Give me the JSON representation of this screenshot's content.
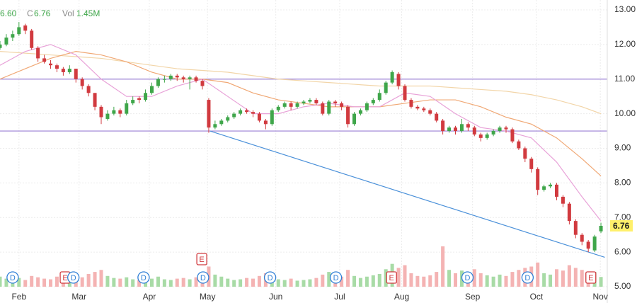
{
  "chart_data": {
    "type": "candlestick",
    "header": {
      "open": "6.60",
      "close_label": "C",
      "close": "6.76",
      "volume_label": "Vol",
      "volume": "1.45M"
    },
    "up_color": "#3fa64a",
    "down_color": "#d13a3f",
    "up_volume_color": "#a8dba6",
    "down_volume_color": "#f4b3b3",
    "x": [
      0,
      1,
      2,
      3,
      4,
      5,
      6,
      7,
      8,
      9,
      10,
      11,
      12,
      13,
      14,
      15,
      16,
      17,
      18,
      19,
      20,
      21,
      22,
      23,
      24,
      25,
      26,
      27,
      28,
      29,
      30,
      31,
      32,
      33,
      34,
      35,
      36,
      37,
      38,
      39,
      40,
      41,
      42,
      43,
      44,
      45,
      46,
      47,
      48,
      49,
      50,
      51,
      52,
      53,
      54,
      55,
      56,
      57,
      58,
      59,
      60,
      61,
      62,
      63,
      64,
      65,
      66,
      67,
      68,
      69,
      70,
      71,
      72,
      73,
      74,
      75,
      76,
      77,
      78,
      79,
      80,
      81,
      82,
      83,
      84,
      85,
      86,
      87,
      88,
      89,
      90,
      91,
      92,
      93,
      94,
      95
    ],
    "candles": [
      [
        11.9,
        12.1,
        11.85,
        12.0
      ],
      [
        12.0,
        12.3,
        11.95,
        12.2
      ],
      [
        12.2,
        12.4,
        12.1,
        12.3
      ],
      [
        12.3,
        12.65,
        12.25,
        12.5
      ],
      [
        12.55,
        12.6,
        12.3,
        12.4
      ],
      [
        12.4,
        12.45,
        11.85,
        11.9
      ],
      [
        11.9,
        11.95,
        11.5,
        11.6
      ],
      [
        11.6,
        11.7,
        11.45,
        11.5
      ],
      [
        11.45,
        11.55,
        11.3,
        11.4
      ],
      [
        11.4,
        11.45,
        11.2,
        11.3
      ],
      [
        11.3,
        11.35,
        11.1,
        11.2
      ],
      [
        11.2,
        11.4,
        11.15,
        11.3
      ],
      [
        11.3,
        11.3,
        10.9,
        11.0
      ],
      [
        11.0,
        11.05,
        10.7,
        10.8
      ],
      [
        10.8,
        10.85,
        10.5,
        10.6
      ],
      [
        10.6,
        10.6,
        10.1,
        10.2
      ],
      [
        10.2,
        10.25,
        9.7,
        9.9
      ],
      [
        9.85,
        10.1,
        9.8,
        10.0
      ],
      [
        10.0,
        10.2,
        9.95,
        10.1
      ],
      [
        10.1,
        10.15,
        9.9,
        10.0
      ],
      [
        10.0,
        10.4,
        9.95,
        10.3
      ],
      [
        10.3,
        10.5,
        10.25,
        10.4
      ],
      [
        10.45,
        10.5,
        10.3,
        10.4
      ],
      [
        10.4,
        10.7,
        10.35,
        10.6
      ],
      [
        10.6,
        10.9,
        10.55,
        10.8
      ],
      [
        10.8,
        11.05,
        10.75,
        11.0
      ],
      [
        11.0,
        11.1,
        10.9,
        11.0
      ],
      [
        11.0,
        11.15,
        10.95,
        11.1
      ],
      [
        11.1,
        11.15,
        10.95,
        11.05
      ],
      [
        11.05,
        11.1,
        10.9,
        11.0
      ],
      [
        11.0,
        11.1,
        10.7,
        11.05
      ],
      [
        11.05,
        11.1,
        10.9,
        10.95
      ],
      [
        10.95,
        11.0,
        10.7,
        10.8
      ],
      [
        10.4,
        10.45,
        9.45,
        9.6
      ],
      [
        9.6,
        9.8,
        9.55,
        9.7
      ],
      [
        9.7,
        9.85,
        9.65,
        9.8
      ],
      [
        9.8,
        9.95,
        9.75,
        9.9
      ],
      [
        9.9,
        10.05,
        9.85,
        10.0
      ],
      [
        10.0,
        10.15,
        9.95,
        10.1
      ],
      [
        10.1,
        10.15,
        10.0,
        10.05
      ],
      [
        10.05,
        10.1,
        9.9,
        10.0
      ],
      [
        10.0,
        10.05,
        9.75,
        9.8
      ],
      [
        9.8,
        9.85,
        9.55,
        9.7
      ],
      [
        9.7,
        10.15,
        9.65,
        10.1
      ],
      [
        10.1,
        10.25,
        10.05,
        10.2
      ],
      [
        10.2,
        10.35,
        10.15,
        10.3
      ],
      [
        10.3,
        10.35,
        10.1,
        10.2
      ],
      [
        10.2,
        10.35,
        10.15,
        10.3
      ],
      [
        10.3,
        10.4,
        10.25,
        10.35
      ],
      [
        10.35,
        10.45,
        10.3,
        10.4
      ],
      [
        10.4,
        10.45,
        10.25,
        10.3
      ],
      [
        10.3,
        10.35,
        9.95,
        10.0
      ],
      [
        10.0,
        10.4,
        9.95,
        10.35
      ],
      [
        10.35,
        10.4,
        10.2,
        10.3
      ],
      [
        10.3,
        10.35,
        10.1,
        10.2
      ],
      [
        10.2,
        10.25,
        9.6,
        9.7
      ],
      [
        9.7,
        10.05,
        9.65,
        10.0
      ],
      [
        10.0,
        10.15,
        9.95,
        10.1
      ],
      [
        10.1,
        10.35,
        10.05,
        10.3
      ],
      [
        10.3,
        10.45,
        10.25,
        10.4
      ],
      [
        10.4,
        10.7,
        10.35,
        10.6
      ],
      [
        10.6,
        10.95,
        10.55,
        10.9
      ],
      [
        10.9,
        11.25,
        10.85,
        11.2
      ],
      [
        11.15,
        11.2,
        10.7,
        10.8
      ],
      [
        10.8,
        10.85,
        10.35,
        10.4
      ],
      [
        10.4,
        10.45,
        10.15,
        10.2
      ],
      [
        10.2,
        10.25,
        10.1,
        10.15
      ],
      [
        10.15,
        10.2,
        10.05,
        10.1
      ],
      [
        10.1,
        10.15,
        9.95,
        10.0
      ],
      [
        10.0,
        10.05,
        9.75,
        9.8
      ],
      [
        9.8,
        9.85,
        9.4,
        9.5
      ],
      [
        9.5,
        9.65,
        9.45,
        9.6
      ],
      [
        9.6,
        9.65,
        9.4,
        9.5
      ],
      [
        9.5,
        9.85,
        9.45,
        9.7
      ],
      [
        9.7,
        9.75,
        9.5,
        9.6
      ],
      [
        9.6,
        9.65,
        9.35,
        9.4
      ],
      [
        9.4,
        9.45,
        9.2,
        9.3
      ],
      [
        9.3,
        9.45,
        9.25,
        9.4
      ],
      [
        9.4,
        9.55,
        9.35,
        9.5
      ],
      [
        9.5,
        9.65,
        9.45,
        9.6
      ],
      [
        9.6,
        9.65,
        9.45,
        9.55
      ],
      [
        9.55,
        9.6,
        9.15,
        9.2
      ],
      [
        9.2,
        9.25,
        8.95,
        9.0
      ],
      [
        9.0,
        9.05,
        8.6,
        8.7
      ],
      [
        8.7,
        8.75,
        8.3,
        8.4
      ],
      [
        8.4,
        8.45,
        7.65,
        7.8
      ],
      [
        7.8,
        7.95,
        7.75,
        7.9
      ],
      [
        7.9,
        8.0,
        7.85,
        7.95
      ],
      [
        7.95,
        8.0,
        7.5,
        7.6
      ],
      [
        7.6,
        7.65,
        7.3,
        7.4
      ],
      [
        7.4,
        7.45,
        6.8,
        6.9
      ],
      [
        6.9,
        6.95,
        6.4,
        6.5
      ],
      [
        6.5,
        6.55,
        6.2,
        6.3
      ],
      [
        6.3,
        6.35,
        6.0,
        6.1
      ],
      [
        6.05,
        6.5,
        6.0,
        6.45
      ],
      [
        6.6,
        6.85,
        6.55,
        6.76
      ]
    ],
    "volume": [
      1.5,
      1.2,
      1.8,
      1.3,
      1.0,
      1.6,
      1.4,
      1.2,
      1.1,
      1.5,
      2.0,
      1.3,
      1.7,
      1.4,
      1.9,
      2.2,
      2.5,
      1.6,
      1.3,
      1.2,
      1.4,
      1.1,
      1.0,
      1.3,
      1.2,
      1.5,
      1.1,
      1.0,
      1.2,
      1.3,
      1.1,
      1.4,
      1.6,
      3.0,
      1.8,
      1.5,
      1.2,
      1.0,
      1.1,
      1.3,
      1.2,
      1.6,
      2.0,
      1.5,
      1.1,
      1.0,
      1.2,
      0.9,
      1.0,
      1.1,
      1.3,
      1.8,
      2.2,
      1.4,
      1.5,
      2.5,
      1.6,
      1.3,
      1.5,
      1.7,
      1.9,
      2.6,
      3.4,
      2.8,
      3.2,
      2.0,
      1.6,
      1.5,
      1.7,
      2.2,
      6.0,
      2.5,
      2.0,
      2.4,
      1.8,
      2.6,
      2.0,
      1.7,
      1.5,
      1.8,
      1.6,
      2.2,
      2.5,
      2.8,
      3.0,
      3.6,
      2.0,
      1.8,
      2.6,
      2.4,
      3.2,
      2.8,
      2.5,
      2.0,
      2.2,
      1.45
    ],
    "moving_averages": [
      {
        "color": "#f2d5a8",
        "x": [
          0,
          4,
          8,
          12,
          16,
          20,
          24,
          28,
          32,
          36,
          40,
          44,
          48,
          52,
          56,
          60,
          64,
          68,
          72,
          76,
          80,
          84,
          88,
          92,
          95
        ],
        "values": [
          11.8,
          11.75,
          11.7,
          11.65,
          11.6,
          11.5,
          11.4,
          11.3,
          11.25,
          11.2,
          11.1,
          11.0,
          10.95,
          10.9,
          10.85,
          10.8,
          10.8,
          10.8,
          10.75,
          10.7,
          10.65,
          10.55,
          10.4,
          10.2,
          10.0
        ]
      },
      {
        "color": "#f0a875",
        "x": [
          0,
          4,
          8,
          12,
          16,
          20,
          24,
          28,
          32,
          36,
          40,
          44,
          48,
          52,
          56,
          60,
          64,
          68,
          72,
          76,
          80,
          84,
          88,
          92,
          95
        ],
        "values": [
          11.0,
          11.3,
          11.6,
          11.8,
          11.7,
          11.5,
          11.2,
          11.0,
          11.0,
          10.9,
          10.6,
          10.4,
          10.3,
          10.2,
          10.2,
          10.2,
          10.3,
          10.4,
          10.4,
          10.2,
          9.9,
          9.7,
          9.3,
          8.7,
          8.2
        ]
      },
      {
        "color": "#e8a2d8",
        "x": [
          0,
          4,
          8,
          12,
          16,
          20,
          24,
          28,
          32,
          36,
          40,
          44,
          48,
          52,
          56,
          60,
          64,
          68,
          72,
          76,
          80,
          84,
          88,
          92,
          95
        ],
        "values": [
          11.4,
          11.8,
          12.0,
          11.7,
          11.0,
          10.5,
          10.5,
          10.8,
          11.0,
          10.5,
          10.0,
          10.0,
          10.2,
          10.3,
          10.2,
          10.2,
          10.6,
          10.5,
          10.0,
          9.6,
          9.5,
          9.3,
          8.6,
          7.6,
          6.9
        ]
      }
    ],
    "horizontal_lines": [
      11.0,
      9.5
    ],
    "horizontal_line_color": "#9a7fd4",
    "trendline": {
      "color": "#4a90d9",
      "x": [
        33.2,
        95.6
      ],
      "values": [
        9.5,
        5.85
      ]
    },
    "markers": [
      {
        "label": "D",
        "x": 2.0
      },
      {
        "label": "E",
        "x": 10.3
      },
      {
        "label": "D",
        "x": 11.6
      },
      {
        "label": "D",
        "x": 22.7
      },
      {
        "label": "D",
        "x": 32.1
      },
      {
        "label": "E",
        "x": 31.9
      },
      {
        "label": "D",
        "x": 42.7
      },
      {
        "label": "D",
        "x": 53.1
      },
      {
        "label": "E",
        "x": 61.9
      },
      {
        "label": "D",
        "x": 73.9
      },
      {
        "label": "D",
        "x": 83.4
      },
      {
        "label": "E",
        "x": 93.4
      }
    ],
    "last_price": 6.76,
    "xlim": [
      0,
      96
    ],
    "xticks": [
      {
        "value": 3,
        "label": "Feb"
      },
      {
        "value": 12.5,
        "label": "Mar"
      },
      {
        "value": 23.6,
        "label": "Apr"
      },
      {
        "value": 32.8,
        "label": "May"
      },
      {
        "value": 43.6,
        "label": "Jun"
      },
      {
        "value": 53.7,
        "label": "Jul"
      },
      {
        "value": 63.5,
        "label": "Aug"
      },
      {
        "value": 74.7,
        "label": "Sep"
      },
      {
        "value": 84.8,
        "label": "Oct"
      },
      {
        "value": 94.9,
        "label": "Nov"
      }
    ],
    "ylim": [
      5,
      13
    ],
    "yticks": [
      {
        "value": 13,
        "label": "13.00"
      },
      {
        "value": 12,
        "label": "12.00"
      },
      {
        "value": 11,
        "label": "11.00"
      },
      {
        "value": 10,
        "label": "10.00"
      },
      {
        "value": 9,
        "label": "9.00"
      },
      {
        "value": 8,
        "label": "8.00"
      },
      {
        "value": 7,
        "label": "7.00"
      },
      {
        "value": 6,
        "label": "6.00"
      },
      {
        "value": 5,
        "label": "5.00"
      }
    ],
    "grid": true
  }
}
